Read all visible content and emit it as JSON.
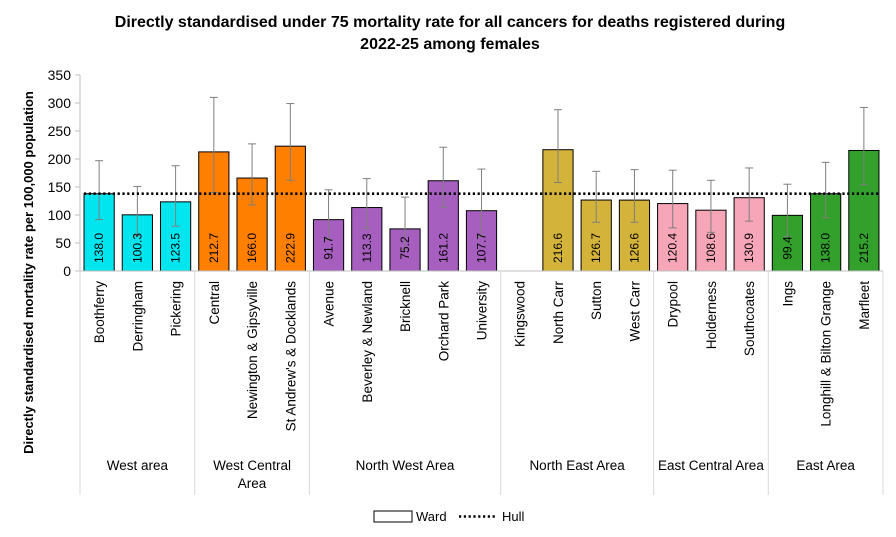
{
  "chart_data": {
    "type": "bar",
    "title_lines": [
      "Directly standardised under 75 mortality rate for all cancers for deaths registered during",
      "2022-25 among females"
    ],
    "ylabel": "Directly standardised mortality rate per 100,000 population",
    "ylim": [
      0,
      350
    ],
    "yticks": [
      "0",
      "50",
      "100",
      "150",
      "200",
      "250",
      "300",
      "350"
    ],
    "grid": false,
    "reference_line": {
      "name": "Hull",
      "value": 138
    },
    "legend": {
      "position": "bottom",
      "items": [
        "Ward",
        "Hull"
      ]
    },
    "groups": [
      {
        "name": "West area",
        "name_lines": [
          "West area"
        ],
        "color": "#00E5EE",
        "wards": [
          {
            "name": "Boothferry",
            "value": 138.0,
            "label": "138.0",
            "ci": [
              92,
              197
            ]
          },
          {
            "name": "Derringham",
            "value": 100.3,
            "label": "100.3",
            "ci": [
              63,
              151
            ]
          },
          {
            "name": "Pickering",
            "value": 123.5,
            "label": "123.5",
            "ci": [
              80,
              188
            ]
          }
        ]
      },
      {
        "name": "West Central Area",
        "name_lines": [
          "West Central",
          "Area"
        ],
        "color": "#FF7F00",
        "wards": [
          {
            "name": "Central",
            "value": 212.7,
            "label": "212.7",
            "ci": [
              140,
              310
            ]
          },
          {
            "name": "Newington & Gipsyville",
            "value": 166.0,
            "label": "166.0",
            "ci": [
              118,
              227
            ]
          },
          {
            "name": "St Andrew's & Docklands",
            "value": 222.9,
            "label": "222.9",
            "ci": [
              162,
              299
            ]
          }
        ]
      },
      {
        "name": "North West Area",
        "name_lines": [
          "North West Area"
        ],
        "color": "#A65FBF",
        "wards": [
          {
            "name": "Avenue",
            "value": 91.7,
            "label": "91.7",
            "ci": [
              56,
              145
            ]
          },
          {
            "name": "Beverley & Newland",
            "value": 113.3,
            "label": "113.3",
            "ci": [
              76,
              165
            ]
          },
          {
            "name": "Bricknell",
            "value": 75.2,
            "label": "75.2",
            "ci": [
              39,
              132
            ]
          },
          {
            "name": "Orchard Park",
            "value": 161.2,
            "label": "161.2",
            "ci": [
              114,
              221
            ]
          },
          {
            "name": "University",
            "value": 107.7,
            "label": "107.7",
            "ci": [
              62,
              182
            ]
          }
        ]
      },
      {
        "name": "North East Area",
        "name_lines": [
          "North East Area"
        ],
        "color": "#D4B33A",
        "wards": [
          {
            "name": "Kingswood",
            "value": null,
            "label": "",
            "ci": null
          },
          {
            "name": "North Carr",
            "value": 216.6,
            "label": "216.6",
            "ci": [
              158,
              288
            ]
          },
          {
            "name": "Sutton",
            "value": 126.7,
            "label": "126.7",
            "ci": [
              87,
              178
            ]
          },
          {
            "name": "West Carr",
            "value": 126.6,
            "label": "126.6",
            "ci": [
              87,
              181
            ]
          }
        ]
      },
      {
        "name": "East Central Area",
        "name_lines": [
          "East Central Area"
        ],
        "color": "#F7A6B8",
        "wards": [
          {
            "name": "Drypool",
            "value": 120.4,
            "label": "120.4",
            "ci": [
              77,
              180
            ]
          },
          {
            "name": "Holderness",
            "value": 108.6,
            "label": "108.6",
            "ci": [
              69,
              162
            ]
          },
          {
            "name": "Southcoates",
            "value": 130.9,
            "label": "130.9",
            "ci": [
              89,
              184
            ]
          }
        ]
      },
      {
        "name": "East Area",
        "name_lines": [
          "East Area"
        ],
        "color": "#33A02C",
        "wards": [
          {
            "name": "Ings",
            "value": 99.4,
            "label": "99.4",
            "ci": [
              62,
              155
            ]
          },
          {
            "name": "Longhill & Bilton Grange",
            "value": 138.0,
            "label": "138.0",
            "ci": [
              95,
              194
            ]
          },
          {
            "name": "Marfleet",
            "value": 215.2,
            "label": "215.2",
            "ci": [
              154,
              292
            ]
          }
        ]
      }
    ]
  }
}
